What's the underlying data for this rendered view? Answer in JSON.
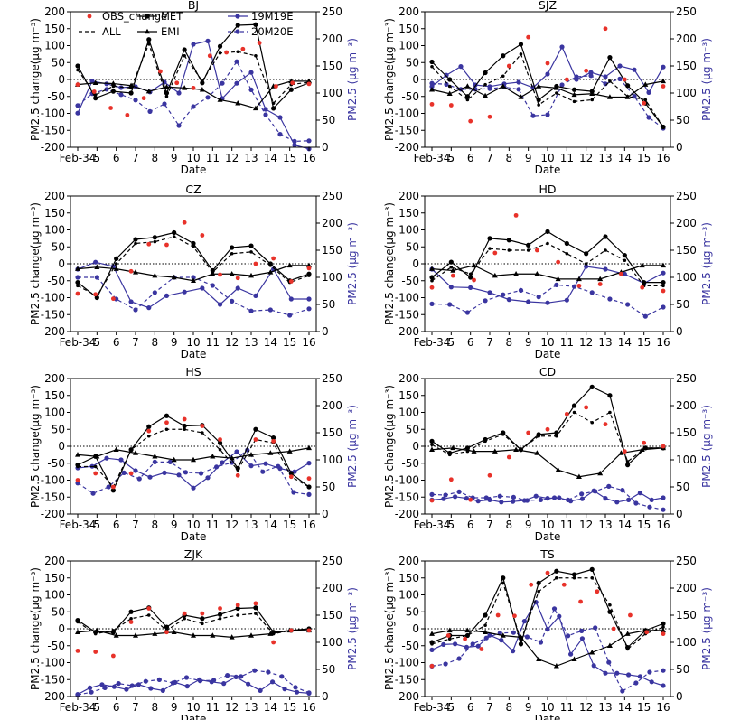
{
  "chart_data": {
    "type": "line",
    "x_tick_labels": [
      "Feb-34",
      "5",
      "6",
      "7",
      "8",
      "9",
      "10",
      "11",
      "12",
      "13",
      "14",
      "15",
      "16"
    ],
    "xlabel": "Date",
    "ylabel_left": "PM2.5 change(μg m⁻³)",
    "ylabel_right": "PM2.5 (μg m⁻³)",
    "ylim_left": [
      -200,
      200
    ],
    "ylim_right": [
      0,
      250
    ],
    "yticks_left": [
      -200,
      -150,
      -100,
      -50,
      0,
      50,
      100,
      150,
      200
    ],
    "yticks_right": [
      0,
      50,
      100,
      150,
      200,
      250
    ],
    "reference_line": "horizontal dotted line at 0",
    "legend": [
      {
        "name": "OBS_change",
        "style": "red dots"
      },
      {
        "name": "MET",
        "style": "black solid line with circles"
      },
      {
        "name": "19M19E",
        "style": "blue solid line with circles, right axis"
      },
      {
        "name": "ALL",
        "style": "black dashed line"
      },
      {
        "name": "EMI",
        "style": "black solid line with triangles"
      },
      {
        "name": "20M20E",
        "style": "blue dashed line with circles, right axis"
      }
    ],
    "colors": {
      "obs": "#e8322a",
      "black": "#000000",
      "blue": "#3a35a0"
    },
    "panels": [
      {
        "title": "BJ",
        "obs": [
          -15,
          -36,
          -84,
          -105,
          -55,
          24,
          -10,
          -25,
          70,
          80,
          90,
          108,
          -20,
          -10,
          -13
        ],
        "met": [
          40,
          -55,
          -35,
          -40,
          118,
          -40,
          88,
          -10,
          98,
          160,
          162,
          -85,
          -30,
          -10
        ],
        "all": [
          28,
          -45,
          -20,
          -25,
          105,
          -50,
          70,
          -5,
          78,
          82,
          70,
          -70,
          -15,
          -8
        ],
        "emi": [
          -15,
          -10,
          -12,
          -18,
          -35,
          -22,
          -25,
          -30,
          -60,
          -70,
          -85,
          -20,
          -5,
          -5
        ],
        "s19": [
          63,
          122,
          117,
          110,
          112,
          102,
          120,
          100,
          190,
          196,
          90,
          118,
          138,
          70,
          55,
          4,
          -3
        ],
        "s20": [
          77,
          99,
          107,
          97,
          87,
          66,
          80,
          40,
          75,
          92,
          118,
          158,
          106,
          60,
          24,
          11,
          12
        ]
      },
      {
        "title": "SJZ",
        "obs": [
          -73,
          -76,
          -123,
          -110,
          40,
          125,
          48,
          0,
          26,
          150,
          0,
          -70,
          -20
        ],
        "met": [
          52,
          0,
          -50,
          20,
          70,
          104,
          -60,
          -20,
          -30,
          -35,
          65,
          -18,
          -70,
          -140
        ],
        "all": [
          38,
          -20,
          -60,
          -15,
          10,
          75,
          -75,
          -40,
          -65,
          -60,
          -5,
          -50,
          -60,
          -140
        ],
        "emi": [
          -30,
          -42,
          -20,
          -48,
          -20,
          -52,
          -20,
          -25,
          -45,
          -42,
          -52,
          -52,
          -15,
          -5
        ],
        "s19": [
          112,
          133,
          149,
          115,
          112,
          117,
          120,
          110,
          135,
          185,
          125,
          138,
          130,
          150,
          143,
          101,
          148
        ],
        "s20": [
          118,
          116,
          107,
          107,
          108,
          111,
          107,
          58,
          60,
          115,
          130,
          132,
          117,
          126,
          94,
          55,
          35
        ]
      },
      {
        "title": "CZ",
        "obs": [
          -88,
          -90,
          -103,
          -22,
          58,
          56,
          122,
          84,
          -32,
          -42,
          0,
          16,
          -52,
          -13
        ],
        "met": [
          -55,
          -100,
          15,
          72,
          78,
          92,
          60,
          -20,
          48,
          53,
          0,
          -50,
          -30
        ],
        "all": [
          -65,
          -95,
          0,
          60,
          65,
          80,
          50,
          -25,
          30,
          35,
          -5,
          -55,
          -35
        ],
        "emi": [
          -15,
          -10,
          -15,
          -25,
          -35,
          -40,
          -50,
          -30,
          -30,
          -35,
          -25,
          -5,
          -5
        ],
        "s19": [
          115,
          128,
          120,
          55,
          44,
          66,
          73,
          80,
          50,
          80,
          66,
          115,
          60,
          60
        ],
        "s20": [
          100,
          100,
          60,
          40,
          72,
          100,
          100,
          85,
          56,
          38,
          40,
          30,
          42
        ]
      },
      {
        "title": "HD",
        "obs": [
          -70,
          -35,
          -48,
          32,
          143,
          40,
          5,
          -65,
          -60,
          -30,
          -70,
          -80
        ],
        "met": [
          -40,
          5,
          -40,
          75,
          70,
          55,
          95,
          60,
          30,
          80,
          25,
          -55,
          -55
        ],
        "all": [
          -50,
          -10,
          -30,
          45,
          40,
          40,
          60,
          30,
          0,
          40,
          10,
          -65,
          -65
        ],
        "emi": [
          -15,
          -20,
          -5,
          -35,
          -30,
          -30,
          -45,
          -45,
          -45,
          -25,
          -5,
          -5
        ],
        "s19": [
          115,
          82,
          81,
          72,
          59,
          55,
          53,
          58,
          120,
          115,
          106,
          89,
          108
        ],
        "s20": [
          51,
          50,
          35,
          57,
          68,
          76,
          64,
          86,
          83,
          72,
          60,
          50,
          28,
          45
        ]
      },
      {
        "title": "HS",
        "obs": [
          -100,
          -80,
          -120,
          -80,
          45,
          70,
          80,
          60,
          20,
          -86,
          20,
          15,
          -90,
          -95
        ],
        "met": [
          -55,
          -30,
          -130,
          -10,
          58,
          90,
          60,
          62,
          10,
          -65,
          50,
          25,
          -80,
          -120
        ],
        "all": [
          -60,
          -60,
          -120,
          -10,
          30,
          50,
          50,
          40,
          -10,
          -70,
          20,
          10,
          -90,
          -120
        ],
        "emi": [
          -25,
          -30,
          -10,
          -20,
          -30,
          -40,
          -40,
          -30,
          -35,
          -25,
          -20,
          -15,
          -5
        ],
        "s19": [
          85,
          88,
          103,
          100,
          80,
          68,
          76,
          72,
          48,
          67,
          95,
          115,
          89,
          93,
          84,
          78,
          94
        ],
        "s20": [
          57,
          38,
          50,
          76,
          65,
          96,
          96,
          77,
          75,
          87,
          95,
          118,
          78,
          88,
          40,
          36
        ]
      },
      {
        "title": "CD",
        "obs": [
          -160,
          -98,
          -158,
          -86,
          -32,
          40,
          50,
          95,
          115,
          65,
          -15,
          10,
          0
        ],
        "met": [
          15,
          -20,
          -5,
          20,
          40,
          -10,
          35,
          40,
          120,
          175,
          150,
          -55,
          -5,
          -5
        ],
        "all": [
          5,
          -25,
          -15,
          15,
          35,
          -10,
          30,
          30,
          100,
          70,
          100,
          -45,
          -5,
          -5
        ],
        "emi": [
          -10,
          -5,
          -15,
          -15,
          -10,
          -20,
          -70,
          -90,
          -80,
          -20,
          -10,
          -5
        ],
        "s19": [
          26,
          28,
          32,
          29,
          24,
          26,
          22,
          23,
          25,
          33,
          29,
          30,
          24,
          28,
          43,
          29,
          22,
          26,
          39,
          26,
          30
        ],
        "s20": [
          36,
          35,
          41,
          30,
          30,
          33,
          31,
          25,
          26,
          30,
          26,
          37,
          42,
          51,
          44,
          20,
          13,
          8
        ]
      },
      {
        "title": "ZJK",
        "obs": [
          -65,
          -68,
          -80,
          20,
          60,
          -10,
          45,
          45,
          60,
          70,
          75,
          -40,
          -5,
          -5
        ],
        "met": [
          25,
          -10,
          -10,
          50,
          62,
          5,
          40,
          30,
          42,
          60,
          62,
          -10,
          -5,
          0
        ],
        "all": [
          20,
          -15,
          -5,
          30,
          40,
          -5,
          30,
          15,
          30,
          40,
          45,
          -15,
          -5,
          -5
        ],
        "emi": [
          -10,
          -5,
          -20,
          -20,
          -15,
          -10,
          -20,
          -20,
          -25,
          -20,
          -15,
          -5,
          -5
        ],
        "s19": [
          4,
          16,
          22,
          18,
          13,
          22,
          15,
          11,
          26,
          19,
          31,
          27,
          24,
          36,
          23,
          11,
          27,
          14,
          8,
          6
        ],
        "s20": [
          3,
          8,
          16,
          24,
          20,
          28,
          31,
          25,
          35,
          29,
          30,
          39,
          37,
          48,
          45,
          37,
          17,
          7
        ]
      },
      {
        "title": "TS",
        "obs": [
          -110,
          -20,
          -30,
          -60,
          40,
          38,
          130,
          165,
          130,
          80,
          110,
          0,
          40,
          -10,
          -15
        ],
        "met": [
          -40,
          -20,
          -20,
          40,
          150,
          -45,
          135,
          170,
          160,
          175,
          50,
          -55,
          -5,
          15
        ],
        "all": [
          -45,
          -30,
          -20,
          10,
          135,
          -35,
          110,
          150,
          150,
          150,
          70,
          -60,
          -15,
          5
        ],
        "emi": [
          -15,
          -5,
          -5,
          -10,
          -20,
          -25,
          -90,
          -110,
          -90,
          -70,
          -50,
          -15,
          -5,
          -5
        ],
        "s19": [
          86,
          96,
          97,
          91,
          93,
          113,
          104,
          84,
          139,
          174,
          124,
          148,
          78,
          107,
          57,
          43,
          43,
          40,
          37,
          27,
          20
        ],
        "s20": [
          56,
          60,
          70,
          97,
          108,
          117,
          118,
          110,
          100,
          162,
          112,
          121,
          127,
          63,
          10,
          25,
          45,
          48
        ]
      }
    ]
  }
}
